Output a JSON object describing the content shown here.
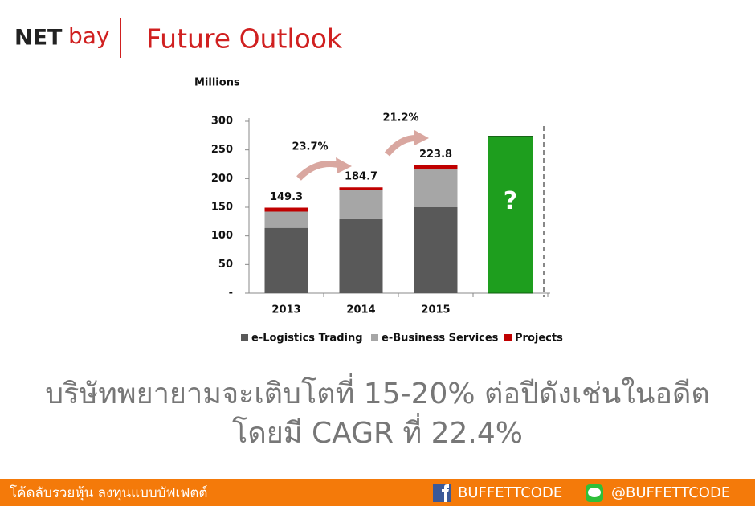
{
  "header": {
    "logo": [
      "NET",
      "bay"
    ],
    "title": "Future Outlook"
  },
  "chart_data": {
    "type": "stacked_bar",
    "y_label": "Millions",
    "categories": [
      "2013",
      "2014",
      "2015",
      null
    ],
    "series": [
      {
        "name": "e-Logistics Trading",
        "color": "#595959",
        "values": [
          114,
          129,
          150,
          null
        ]
      },
      {
        "name": "e-Business Services",
        "color": "#a6a6a6",
        "values": [
          28.3,
          50.7,
          65.8,
          null
        ]
      },
      {
        "name": "Projects",
        "color": "#c00000",
        "values": [
          7,
          5,
          8,
          null
        ]
      }
    ],
    "totals": [
      149.3,
      184.7,
      223.8,
      null
    ],
    "forecast": {
      "value": 274,
      "label": "?",
      "color": "#1e9e1e"
    },
    "annotations": [
      "23.7%",
      "21.2%"
    ],
    "ylim": [
      0,
      300
    ],
    "yticks": [
      {
        "value": 0,
        "label": "-"
      },
      50,
      100,
      150,
      200,
      250,
      300
    ]
  },
  "body": {
    "lines": [
      "บริษัทพยายามจะเติบโตที่ 15-20% ต่อปีดังเช่นในอดีต",
      "โดยมี CAGR ที่ 22.4%"
    ]
  },
  "footer": {
    "slogan": "โค้ดลับรวยหุ้น ลงทุนแบบบัฟเฟตต์",
    "facebook": "BUFFETTCODE",
    "line": "@BUFFETTCODE"
  }
}
